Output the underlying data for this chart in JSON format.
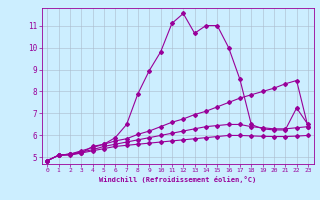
{
  "title": "",
  "xlabel": "Windchill (Refroidissement éolien,°C)",
  "ylabel": "",
  "bg_color": "#cceeff",
  "line_color": "#990099",
  "grid_color": "#aabbcc",
  "xlim": [
    -0.5,
    23.5
  ],
  "ylim": [
    4.7,
    11.8
  ],
  "xticks": [
    0,
    1,
    2,
    3,
    4,
    5,
    6,
    7,
    8,
    9,
    10,
    11,
    12,
    13,
    14,
    15,
    16,
    17,
    18,
    19,
    20,
    21,
    22,
    23
  ],
  "yticks": [
    5,
    6,
    7,
    8,
    9,
    10,
    11
  ],
  "line1_x": [
    0,
    1,
    2,
    3,
    4,
    5,
    6,
    7,
    8,
    9,
    10,
    11,
    12,
    13,
    14,
    15,
    16,
    17,
    18,
    19,
    20,
    21,
    22,
    23
  ],
  "line1_y": [
    4.85,
    5.1,
    5.1,
    5.2,
    5.5,
    5.6,
    5.9,
    6.5,
    7.9,
    8.95,
    9.8,
    11.1,
    11.55,
    10.65,
    11.0,
    11.0,
    10.0,
    8.55,
    6.5,
    6.3,
    6.25,
    6.25,
    7.25,
    6.5
  ],
  "line2_x": [
    0,
    1,
    2,
    3,
    4,
    5,
    6,
    7,
    8,
    9,
    10,
    11,
    12,
    13,
    14,
    15,
    16,
    17,
    18,
    19,
    20,
    21,
    22,
    23
  ],
  "line2_y": [
    4.85,
    5.1,
    5.15,
    5.3,
    5.45,
    5.6,
    5.75,
    5.85,
    6.05,
    6.2,
    6.4,
    6.6,
    6.75,
    6.95,
    7.1,
    7.3,
    7.5,
    7.7,
    7.85,
    8.0,
    8.15,
    8.35,
    8.5,
    6.4
  ],
  "line3_x": [
    0,
    1,
    2,
    3,
    4,
    5,
    6,
    7,
    8,
    9,
    10,
    11,
    12,
    13,
    14,
    15,
    16,
    17,
    18,
    19,
    20,
    21,
    22,
    23
  ],
  "line3_y": [
    4.85,
    5.1,
    5.15,
    5.25,
    5.35,
    5.5,
    5.6,
    5.7,
    5.8,
    5.9,
    6.0,
    6.1,
    6.2,
    6.3,
    6.4,
    6.45,
    6.5,
    6.5,
    6.4,
    6.35,
    6.3,
    6.3,
    6.35,
    6.4
  ],
  "line4_x": [
    0,
    1,
    2,
    3,
    4,
    5,
    6,
    7,
    8,
    9,
    10,
    11,
    12,
    13,
    14,
    15,
    16,
    17,
    18,
    19,
    20,
    21,
    22,
    23
  ],
  "line4_y": [
    4.85,
    5.1,
    5.15,
    5.2,
    5.3,
    5.4,
    5.5,
    5.55,
    5.6,
    5.65,
    5.7,
    5.75,
    5.8,
    5.85,
    5.9,
    5.95,
    6.0,
    6.0,
    5.98,
    5.96,
    5.95,
    5.95,
    5.97,
    6.0
  ]
}
